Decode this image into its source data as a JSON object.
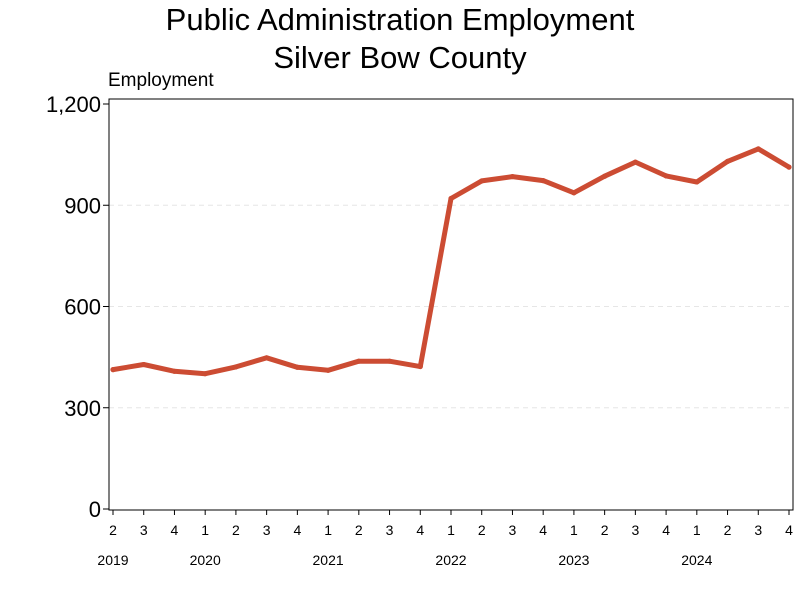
{
  "chart_data": {
    "type": "line",
    "title": "Public Administration Employment",
    "subtitle": "Silver Bow County",
    "ylabel": "Employment",
    "xlabel": "",
    "ylim": [
      0,
      1200
    ],
    "yticks": [
      0,
      300,
      600,
      900,
      1200
    ],
    "ytick_labels": [
      "0",
      "300",
      "600",
      "900",
      "1,200"
    ],
    "grid": "horizontal dashed",
    "x": [
      "2",
      "3",
      "4",
      "1",
      "2",
      "3",
      "4",
      "1",
      "2",
      "3",
      "4",
      "1",
      "2",
      "3",
      "4",
      "1",
      "2",
      "3",
      "4",
      "1",
      "2",
      "3",
      "4"
    ],
    "year_labels": [
      {
        "label": "2019",
        "index": 0
      },
      {
        "label": "2020",
        "index": 3
      },
      {
        "label": "2021",
        "index": 7
      },
      {
        "label": "2022",
        "index": 11
      },
      {
        "label": "2023",
        "index": 15
      },
      {
        "label": "2024",
        "index": 19
      }
    ],
    "series": [
      {
        "color": "#cc4c33",
        "values": [
          413,
          428,
          408,
          401,
          421,
          448,
          420,
          411,
          438,
          438,
          422,
          920,
          972,
          985,
          973,
          937,
          986,
          1028,
          987,
          969,
          1030,
          1067,
          1013
        ]
      }
    ]
  }
}
